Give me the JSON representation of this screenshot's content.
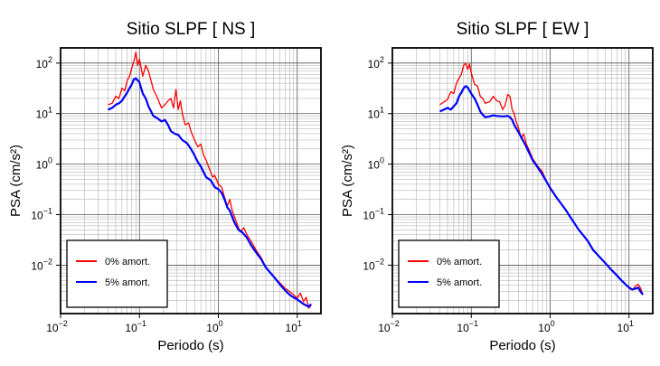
{
  "chart_data": [
    {
      "type": "line",
      "title": "Sitio SLPF [ NS ]",
      "xlabel": "Periodo (s)",
      "ylabel": "PSA (cm/s²)",
      "xscale": "log",
      "yscale": "log",
      "xlim": [
        0.01,
        20
      ],
      "ylim": [
        0.0011,
        200
      ],
      "x_ticks": [
        {
          "base": "10",
          "exp": "−2"
        },
        {
          "base": "10",
          "exp": "−1"
        },
        {
          "base": "10",
          "exp": "0"
        },
        {
          "base": "10",
          "exp": "1"
        }
      ],
      "y_ticks": [
        {
          "base": "10",
          "exp": "−2"
        },
        {
          "base": "10",
          "exp": "−1"
        },
        {
          "base": "10",
          "exp": "0"
        },
        {
          "base": "10",
          "exp": "1"
        },
        {
          "base": "10",
          "exp": "2"
        }
      ],
      "grid": true,
      "legend_position": "bottom-left",
      "series": [
        {
          "name": "0% amort.",
          "color": "#ff0000",
          "points": [
            [
              0.04,
              15
            ],
            [
              0.045,
              16
            ],
            [
              0.05,
              22
            ],
            [
              0.055,
              20
            ],
            [
              0.06,
              32
            ],
            [
              0.065,
              28
            ],
            [
              0.07,
              45
            ],
            [
              0.075,
              55
            ],
            [
              0.08,
              80
            ],
            [
              0.085,
              110
            ],
            [
              0.09,
              165
            ],
            [
              0.095,
              90
            ],
            [
              0.1,
              120
            ],
            [
              0.11,
              55
            ],
            [
              0.12,
              90
            ],
            [
              0.13,
              70
            ],
            [
              0.14,
              45
            ],
            [
              0.15,
              30
            ],
            [
              0.17,
              20
            ],
            [
              0.19,
              13
            ],
            [
              0.21,
              15
            ],
            [
              0.23,
              18
            ],
            [
              0.25,
              20
            ],
            [
              0.27,
              13
            ],
            [
              0.29,
              30
            ],
            [
              0.31,
              12
            ],
            [
              0.33,
              18
            ],
            [
              0.35,
              10
            ],
            [
              0.38,
              6
            ],
            [
              0.42,
              6.5
            ],
            [
              0.45,
              4.5
            ],
            [
              0.5,
              3
            ],
            [
              0.55,
              2.2
            ],
            [
              0.6,
              2.5
            ],
            [
              0.65,
              1.5
            ],
            [
              0.7,
              1.2
            ],
            [
              0.75,
              0.9
            ],
            [
              0.8,
              0.7
            ],
            [
              0.85,
              0.55
            ],
            [
              0.9,
              0.6
            ],
            [
              1.0,
              0.4
            ],
            [
              1.1,
              0.35
            ],
            [
              1.2,
              0.22
            ],
            [
              1.3,
              0.15
            ],
            [
              1.4,
              0.2
            ],
            [
              1.5,
              0.12
            ],
            [
              1.7,
              0.07
            ],
            [
              1.9,
              0.045
            ],
            [
              2.1,
              0.055
            ],
            [
              2.3,
              0.04
            ],
            [
              2.6,
              0.03
            ],
            [
              3.0,
              0.02
            ],
            [
              3.5,
              0.014
            ],
            [
              4.0,
              0.009
            ],
            [
              5.0,
              0.006
            ],
            [
              6.0,
              0.0045
            ],
            [
              7.0,
              0.0035
            ],
            [
              8.0,
              0.003
            ],
            [
              9.0,
              0.0026
            ],
            [
              10.0,
              0.0022
            ],
            [
              11.0,
              0.0028
            ],
            [
              12.0,
              0.0019
            ],
            [
              13.0,
              0.0023
            ],
            [
              14.0,
              0.0014
            ],
            [
              15.0,
              0.0016
            ]
          ]
        },
        {
          "name": "5% amort.",
          "color": "#0000ff",
          "points": [
            [
              0.04,
              12
            ],
            [
              0.045,
              13
            ],
            [
              0.05,
              15
            ],
            [
              0.055,
              16
            ],
            [
              0.06,
              18
            ],
            [
              0.065,
              22
            ],
            [
              0.07,
              26
            ],
            [
              0.075,
              32
            ],
            [
              0.08,
              38
            ],
            [
              0.085,
              48
            ],
            [
              0.09,
              50
            ],
            [
              0.1,
              42
            ],
            [
              0.11,
              25
            ],
            [
              0.12,
              20
            ],
            [
              0.13,
              14
            ],
            [
              0.15,
              9
            ],
            [
              0.17,
              8
            ],
            [
              0.19,
              7
            ],
            [
              0.21,
              7.5
            ],
            [
              0.23,
              6
            ],
            [
              0.25,
              4.5
            ],
            [
              0.28,
              4
            ],
            [
              0.31,
              3.8
            ],
            [
              0.35,
              3
            ],
            [
              0.4,
              2.6
            ],
            [
              0.45,
              2
            ],
            [
              0.5,
              1.5
            ],
            [
              0.55,
              1.1
            ],
            [
              0.6,
              0.9
            ],
            [
              0.7,
              0.55
            ],
            [
              0.8,
              0.48
            ],
            [
              0.9,
              0.35
            ],
            [
              1.0,
              0.32
            ],
            [
              1.1,
              0.27
            ],
            [
              1.2,
              0.2
            ],
            [
              1.3,
              0.14
            ],
            [
              1.4,
              0.12
            ],
            [
              1.6,
              0.07
            ],
            [
              1.8,
              0.05
            ],
            [
              2.0,
              0.045
            ],
            [
              2.3,
              0.035
            ],
            [
              2.6,
              0.025
            ],
            [
              3.0,
              0.018
            ],
            [
              3.5,
              0.013
            ],
            [
              4.0,
              0.009
            ],
            [
              5.0,
              0.006
            ],
            [
              6.0,
              0.0042
            ],
            [
              7.0,
              0.0032
            ],
            [
              8.0,
              0.0026
            ],
            [
              9.0,
              0.0023
            ],
            [
              10.0,
              0.0021
            ],
            [
              12.0,
              0.0017
            ],
            [
              14.0,
              0.0015
            ],
            [
              15.0,
              0.0017
            ]
          ]
        }
      ]
    },
    {
      "type": "line",
      "title": "Sitio SLPF [ EW ]",
      "xlabel": "Periodo (s)",
      "ylabel": "PSA (cm/s²)",
      "xscale": "log",
      "yscale": "log",
      "xlim": [
        0.01,
        20
      ],
      "ylim": [
        0.0011,
        200
      ],
      "x_ticks": [
        {
          "base": "10",
          "exp": "−2"
        },
        {
          "base": "10",
          "exp": "−1"
        },
        {
          "base": "10",
          "exp": "0"
        },
        {
          "base": "10",
          "exp": "1"
        }
      ],
      "y_ticks": [
        {
          "base": "10",
          "exp": "−2"
        },
        {
          "base": "10",
          "exp": "−1"
        },
        {
          "base": "10",
          "exp": "0"
        },
        {
          "base": "10",
          "exp": "1"
        },
        {
          "base": "10",
          "exp": "2"
        }
      ],
      "grid": true,
      "legend_position": "bottom-left",
      "series": [
        {
          "name": "0% amort.",
          "color": "#ff0000",
          "points": [
            [
              0.04,
              15
            ],
            [
              0.045,
              17
            ],
            [
              0.05,
              19
            ],
            [
              0.055,
              27
            ],
            [
              0.06,
              25
            ],
            [
              0.065,
              40
            ],
            [
              0.07,
              50
            ],
            [
              0.075,
              60
            ],
            [
              0.08,
              90
            ],
            [
              0.085,
              100
            ],
            [
              0.09,
              75
            ],
            [
              0.095,
              95
            ],
            [
              0.1,
              65
            ],
            [
              0.11,
              38
            ],
            [
              0.12,
              35
            ],
            [
              0.13,
              22
            ],
            [
              0.14,
              20
            ],
            [
              0.15,
              16
            ],
            [
              0.17,
              17
            ],
            [
              0.19,
              22
            ],
            [
              0.21,
              18
            ],
            [
              0.23,
              17
            ],
            [
              0.25,
              12
            ],
            [
              0.27,
              15
            ],
            [
              0.29,
              24
            ],
            [
              0.31,
              22
            ],
            [
              0.33,
              12
            ],
            [
              0.35,
              10
            ],
            [
              0.37,
              7
            ],
            [
              0.4,
              5
            ],
            [
              0.43,
              3.2
            ],
            [
              0.46,
              4
            ],
            [
              0.5,
              2.5
            ],
            [
              0.55,
              1.8
            ],
            [
              0.6,
              1.3
            ],
            [
              0.7,
              0.9
            ],
            [
              0.8,
              0.7
            ],
            [
              0.9,
              0.45
            ],
            [
              1.0,
              0.32
            ],
            [
              1.2,
              0.22
            ],
            [
              1.4,
              0.16
            ],
            [
              1.6,
              0.12
            ],
            [
              1.8,
              0.09
            ],
            [
              2.0,
              0.07
            ],
            [
              2.3,
              0.05
            ],
            [
              2.6,
              0.04
            ],
            [
              3.0,
              0.03
            ],
            [
              3.5,
              0.02
            ],
            [
              4.0,
              0.016
            ],
            [
              5.0,
              0.011
            ],
            [
              6.0,
              0.008
            ],
            [
              7.0,
              0.0065
            ],
            [
              8.0,
              0.005
            ],
            [
              9.0,
              0.0042
            ],
            [
              10.0,
              0.0035
            ],
            [
              11.0,
              0.0032
            ],
            [
              12.0,
              0.0038
            ],
            [
              13.0,
              0.0042
            ],
            [
              14.0,
              0.0035
            ],
            [
              15.0,
              0.0026
            ]
          ]
        },
        {
          "name": "5% amort.",
          "color": "#0000ff",
          "points": [
            [
              0.04,
              11
            ],
            [
              0.045,
              12
            ],
            [
              0.05,
              13
            ],
            [
              0.055,
              12
            ],
            [
              0.06,
              14
            ],
            [
              0.065,
              16
            ],
            [
              0.07,
              22
            ],
            [
              0.075,
              26
            ],
            [
              0.08,
              32
            ],
            [
              0.085,
              35
            ],
            [
              0.09,
              33
            ],
            [
              0.1,
              25
            ],
            [
              0.11,
              20
            ],
            [
              0.12,
              15
            ],
            [
              0.13,
              11
            ],
            [
              0.14,
              9.5
            ],
            [
              0.15,
              8.5
            ],
            [
              0.17,
              8.8
            ],
            [
              0.19,
              9.2
            ],
            [
              0.21,
              9
            ],
            [
              0.25,
              8.8
            ],
            [
              0.29,
              9
            ],
            [
              0.31,
              8.5
            ],
            [
              0.33,
              7.5
            ],
            [
              0.35,
              6
            ],
            [
              0.4,
              4.2
            ],
            [
              0.45,
              3
            ],
            [
              0.5,
              2.2
            ],
            [
              0.55,
              1.6
            ],
            [
              0.6,
              1.2
            ],
            [
              0.7,
              0.85
            ],
            [
              0.8,
              0.62
            ],
            [
              0.9,
              0.45
            ],
            [
              1.0,
              0.34
            ],
            [
              1.2,
              0.22
            ],
            [
              1.4,
              0.16
            ],
            [
              1.6,
              0.12
            ],
            [
              1.8,
              0.09
            ],
            [
              2.0,
              0.07
            ],
            [
              2.3,
              0.05
            ],
            [
              2.6,
              0.04
            ],
            [
              3.0,
              0.03
            ],
            [
              3.5,
              0.02
            ],
            [
              4.0,
              0.016
            ],
            [
              5.0,
              0.011
            ],
            [
              6.0,
              0.008
            ],
            [
              7.0,
              0.0063
            ],
            [
              8.0,
              0.005
            ],
            [
              9.0,
              0.0042
            ],
            [
              10.0,
              0.0036
            ],
            [
              11.0,
              0.0033
            ],
            [
              12.0,
              0.0034
            ],
            [
              13.0,
              0.0036
            ],
            [
              14.0,
              0.003
            ],
            [
              15.0,
              0.0026
            ]
          ]
        }
      ]
    }
  ]
}
